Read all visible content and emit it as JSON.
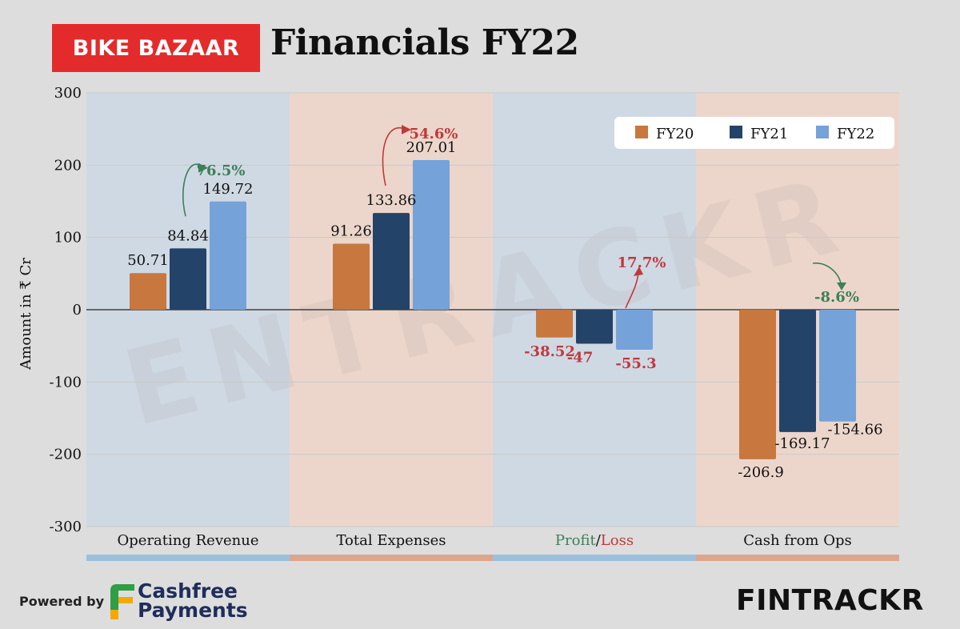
{
  "header": {
    "brand": "BIKE BAZAAR",
    "title": "Financials FY22"
  },
  "footer": {
    "powered_by": "Powered by",
    "cashfree_line1": "Cashfree",
    "cashfree_line2": "Payments",
    "fintrackr": "FINTRACKR"
  },
  "colors": {
    "FY20": "#c8773f",
    "FY21": "#234369",
    "FY22": "#75a2d9",
    "positive": "#3d7f57",
    "negative": "#c0393b",
    "bg_blue": "#cfd9e4",
    "bg_peach": "#ecd6cb",
    "strip_blue": "#9ebfdc",
    "strip_peach": "#dca68c"
  },
  "chart_data": {
    "type": "bar",
    "ylabel": "Amount in ₹ Cr",
    "ylim": [
      -300,
      300
    ],
    "yticks": [
      300,
      200,
      100,
      0,
      -100,
      -200,
      -300
    ],
    "categories": [
      "Operating Revenue",
      "Total Expenses",
      "Profit/Loss",
      "Cash from Ops"
    ],
    "profit_loss_label": {
      "profit": "Profit",
      "sep": "/",
      "loss": "Loss"
    },
    "series": [
      {
        "name": "FY20",
        "values": [
          50.71,
          91.26,
          -38.52,
          -206.9
        ],
        "labels": [
          "50.71",
          "91.26",
          "-38.52",
          "-206.9"
        ]
      },
      {
        "name": "FY21",
        "values": [
          84.84,
          133.86,
          -47,
          -169.17
        ],
        "labels": [
          "84.84",
          "133.86",
          "-47",
          "-169.17"
        ]
      },
      {
        "name": "FY22",
        "values": [
          149.72,
          207.01,
          -55.3,
          -154.66
        ],
        "labels": [
          "149.72",
          "207.01",
          "-55.3",
          "-154.66"
        ]
      }
    ],
    "growth": [
      {
        "category": "Operating Revenue",
        "text": "76.5%",
        "trend": "positive"
      },
      {
        "category": "Total Expenses",
        "text": "54.6%",
        "trend": "negative"
      },
      {
        "category": "Profit/Loss",
        "text": "17.7%",
        "trend": "negative"
      },
      {
        "category": "Cash from Ops",
        "text": "-8.6%",
        "trend": "positive"
      }
    ],
    "legend": {
      "placement": "top-right",
      "entries": [
        "FY20",
        "FY21",
        "FY22"
      ]
    },
    "grid": true,
    "watermark": "ENTRACKR"
  }
}
